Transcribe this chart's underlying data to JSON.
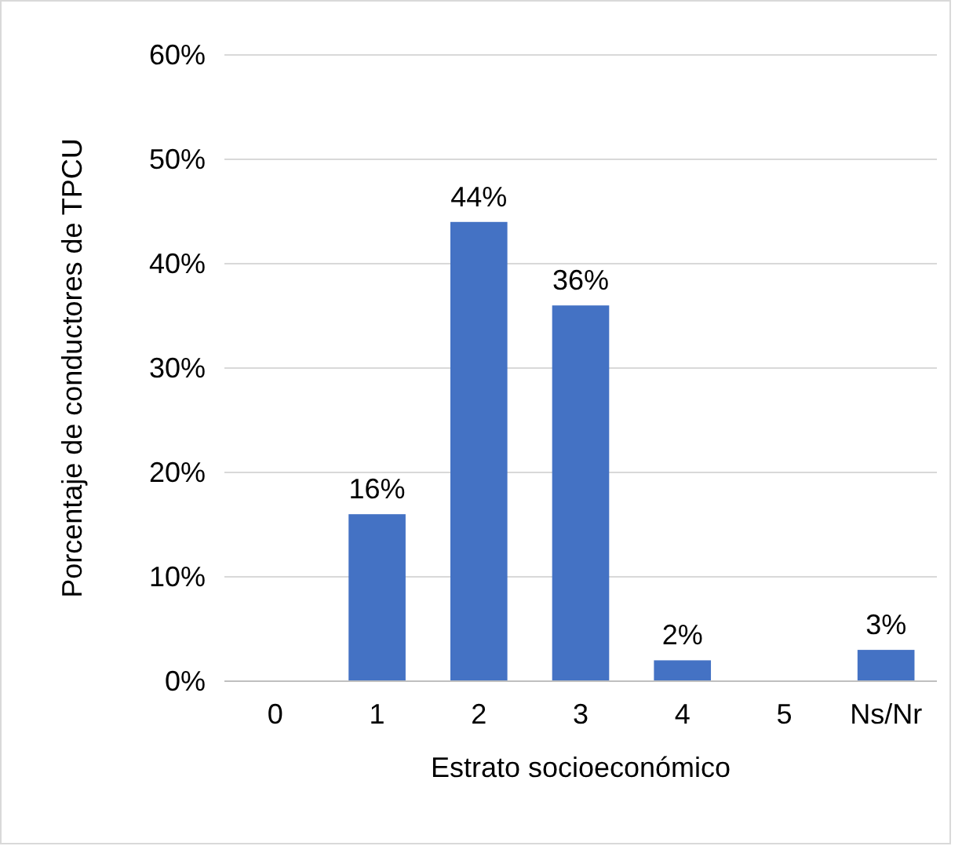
{
  "chart_data": {
    "type": "bar",
    "xlabel": "Estrato socioeconómico",
    "ylabel": "Porcentaje de conductores de TPCU",
    "categories": [
      "0",
      "1",
      "2",
      "3",
      "4",
      "5",
      "Ns/Nr"
    ],
    "values": [
      0,
      16,
      44,
      36,
      2,
      0,
      3
    ],
    "value_labels": [
      null,
      "16%",
      "44%",
      "36%",
      "2%",
      null,
      "3%"
    ],
    "color": "#4472c4",
    "ylim": [
      0,
      60
    ],
    "yticks": [
      {
        "value": 0,
        "label": "0%"
      },
      {
        "value": 10,
        "label": "10%"
      },
      {
        "value": 20,
        "label": "20%"
      },
      {
        "value": 30,
        "label": "30%"
      },
      {
        "value": 40,
        "label": "40%"
      },
      {
        "value": 50,
        "label": "50%"
      },
      {
        "value": 60,
        "label": "60%"
      }
    ],
    "grid": "y"
  }
}
